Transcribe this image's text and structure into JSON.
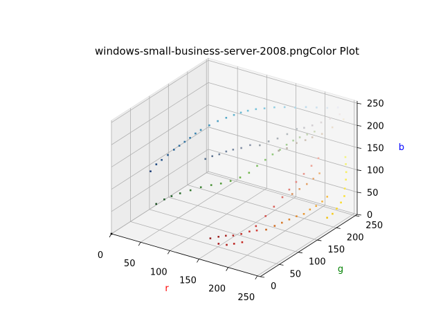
{
  "chart_data": {
    "type": "scatter",
    "projection": "3d",
    "title": "windows-small-business-server-2008.pngColor Plot",
    "xlabel": "r",
    "ylabel": "g",
    "zlabel": "b",
    "xlabel_color": "#ff0000",
    "ylabel_color": "#008000",
    "zlabel_color": "#0000ff",
    "xlim": [
      0,
      255
    ],
    "ylim": [
      0,
      255
    ],
    "zlim": [
      0,
      255
    ],
    "xticks": [
      "0",
      "50",
      "100",
      "150",
      "200",
      "250"
    ],
    "yticks": [
      "0",
      "50",
      "100",
      "150",
      "200",
      "250"
    ],
    "zticks": [
      "0",
      "50",
      "100",
      "150",
      "200",
      "250"
    ],
    "grid": true,
    "pane_color": "#f2f2f2",
    "points": [
      [
        0,
        0,
        0
      ],
      [
        28,
        60,
        118
      ],
      [
        30,
        72,
        128
      ],
      [
        34,
        80,
        135
      ],
      [
        38,
        90,
        142
      ],
      [
        42,
        100,
        150
      ],
      [
        46,
        108,
        156
      ],
      [
        50,
        116,
        162
      ],
      [
        54,
        124,
        168
      ],
      [
        58,
        132,
        175
      ],
      [
        62,
        140,
        180
      ],
      [
        70,
        150,
        188
      ],
      [
        78,
        160,
        195
      ],
      [
        86,
        170,
        200
      ],
      [
        94,
        178,
        205
      ],
      [
        102,
        184,
        210
      ],
      [
        110,
        190,
        214
      ],
      [
        120,
        196,
        218
      ],
      [
        132,
        200,
        222
      ],
      [
        145,
        206,
        226
      ],
      [
        160,
        210,
        230
      ],
      [
        175,
        215,
        232
      ],
      [
        190,
        220,
        236
      ],
      [
        205,
        225,
        238
      ],
      [
        220,
        230,
        240
      ],
      [
        235,
        235,
        244
      ],
      [
        26,
        78,
        34
      ],
      [
        32,
        90,
        40
      ],
      [
        38,
        100,
        44
      ],
      [
        46,
        110,
        48
      ],
      [
        56,
        122,
        52
      ],
      [
        66,
        134,
        56
      ],
      [
        76,
        146,
        58
      ],
      [
        86,
        156,
        60
      ],
      [
        96,
        166,
        64
      ],
      [
        106,
        176,
        70
      ],
      [
        116,
        184,
        80
      ],
      [
        126,
        190,
        96
      ],
      [
        136,
        196,
        110
      ],
      [
        146,
        200,
        124
      ],
      [
        156,
        204,
        136
      ],
      [
        166,
        206,
        150
      ],
      [
        176,
        208,
        162
      ],
      [
        186,
        210,
        172
      ],
      [
        196,
        214,
        180
      ],
      [
        206,
        218,
        188
      ],
      [
        150,
        30,
        30
      ],
      [
        160,
        36,
        34
      ],
      [
        170,
        40,
        38
      ],
      [
        180,
        44,
        40
      ],
      [
        190,
        50,
        44
      ],
      [
        200,
        56,
        50
      ],
      [
        210,
        60,
        54
      ],
      [
        168,
        24,
        28
      ],
      [
        178,
        30,
        26
      ],
      [
        188,
        34,
        30
      ],
      [
        198,
        40,
        34
      ],
      [
        206,
        64,
        60
      ],
      [
        212,
        80,
        76
      ],
      [
        216,
        96,
        90
      ],
      [
        220,
        112,
        104
      ],
      [
        224,
        124,
        116
      ],
      [
        228,
        136,
        128
      ],
      [
        232,
        150,
        140
      ],
      [
        236,
        164,
        152
      ],
      [
        240,
        176,
        164
      ],
      [
        200,
        100,
        30
      ],
      [
        208,
        110,
        36
      ],
      [
        214,
        120,
        40
      ],
      [
        220,
        130,
        44
      ],
      [
        226,
        140,
        48
      ],
      [
        232,
        150,
        50
      ],
      [
        236,
        160,
        56
      ],
      [
        240,
        170,
        60
      ],
      [
        244,
        180,
        66
      ],
      [
        246,
        190,
        72
      ],
      [
        216,
        144,
        92
      ],
      [
        222,
        154,
        100
      ],
      [
        228,
        164,
        108
      ],
      [
        234,
        172,
        118
      ],
      [
        238,
        182,
        126
      ],
      [
        242,
        196,
        20
      ],
      [
        246,
        204,
        26
      ],
      [
        248,
        212,
        34
      ],
      [
        250,
        220,
        44
      ],
      [
        252,
        226,
        56
      ],
      [
        250,
        230,
        70
      ],
      [
        248,
        236,
        86
      ],
      [
        246,
        240,
        100
      ],
      [
        244,
        242,
        116
      ],
      [
        242,
        244,
        130
      ],
      [
        190,
        196,
        200
      ],
      [
        200,
        200,
        204
      ],
      [
        210,
        206,
        210
      ],
      [
        180,
        186,
        190
      ],
      [
        170,
        176,
        182
      ],
      [
        160,
        168,
        176
      ],
      [
        150,
        160,
        168
      ],
      [
        220,
        214,
        216
      ],
      [
        230,
        222,
        224
      ],
      [
        240,
        232,
        232
      ],
      [
        196,
        186,
        176
      ],
      [
        206,
        194,
        182
      ],
      [
        186,
        176,
        166
      ],
      [
        176,
        170,
        160
      ],
      [
        214,
        200,
        188
      ],
      [
        224,
        210,
        194
      ],
      [
        234,
        222,
        206
      ],
      [
        244,
        236,
        220
      ],
      [
        140,
        150,
        170
      ],
      [
        130,
        142,
        164
      ],
      [
        120,
        136,
        160
      ],
      [
        112,
        130,
        156
      ],
      [
        104,
        124,
        150
      ],
      [
        96,
        118,
        146
      ],
      [
        88,
        112,
        140
      ]
    ]
  }
}
